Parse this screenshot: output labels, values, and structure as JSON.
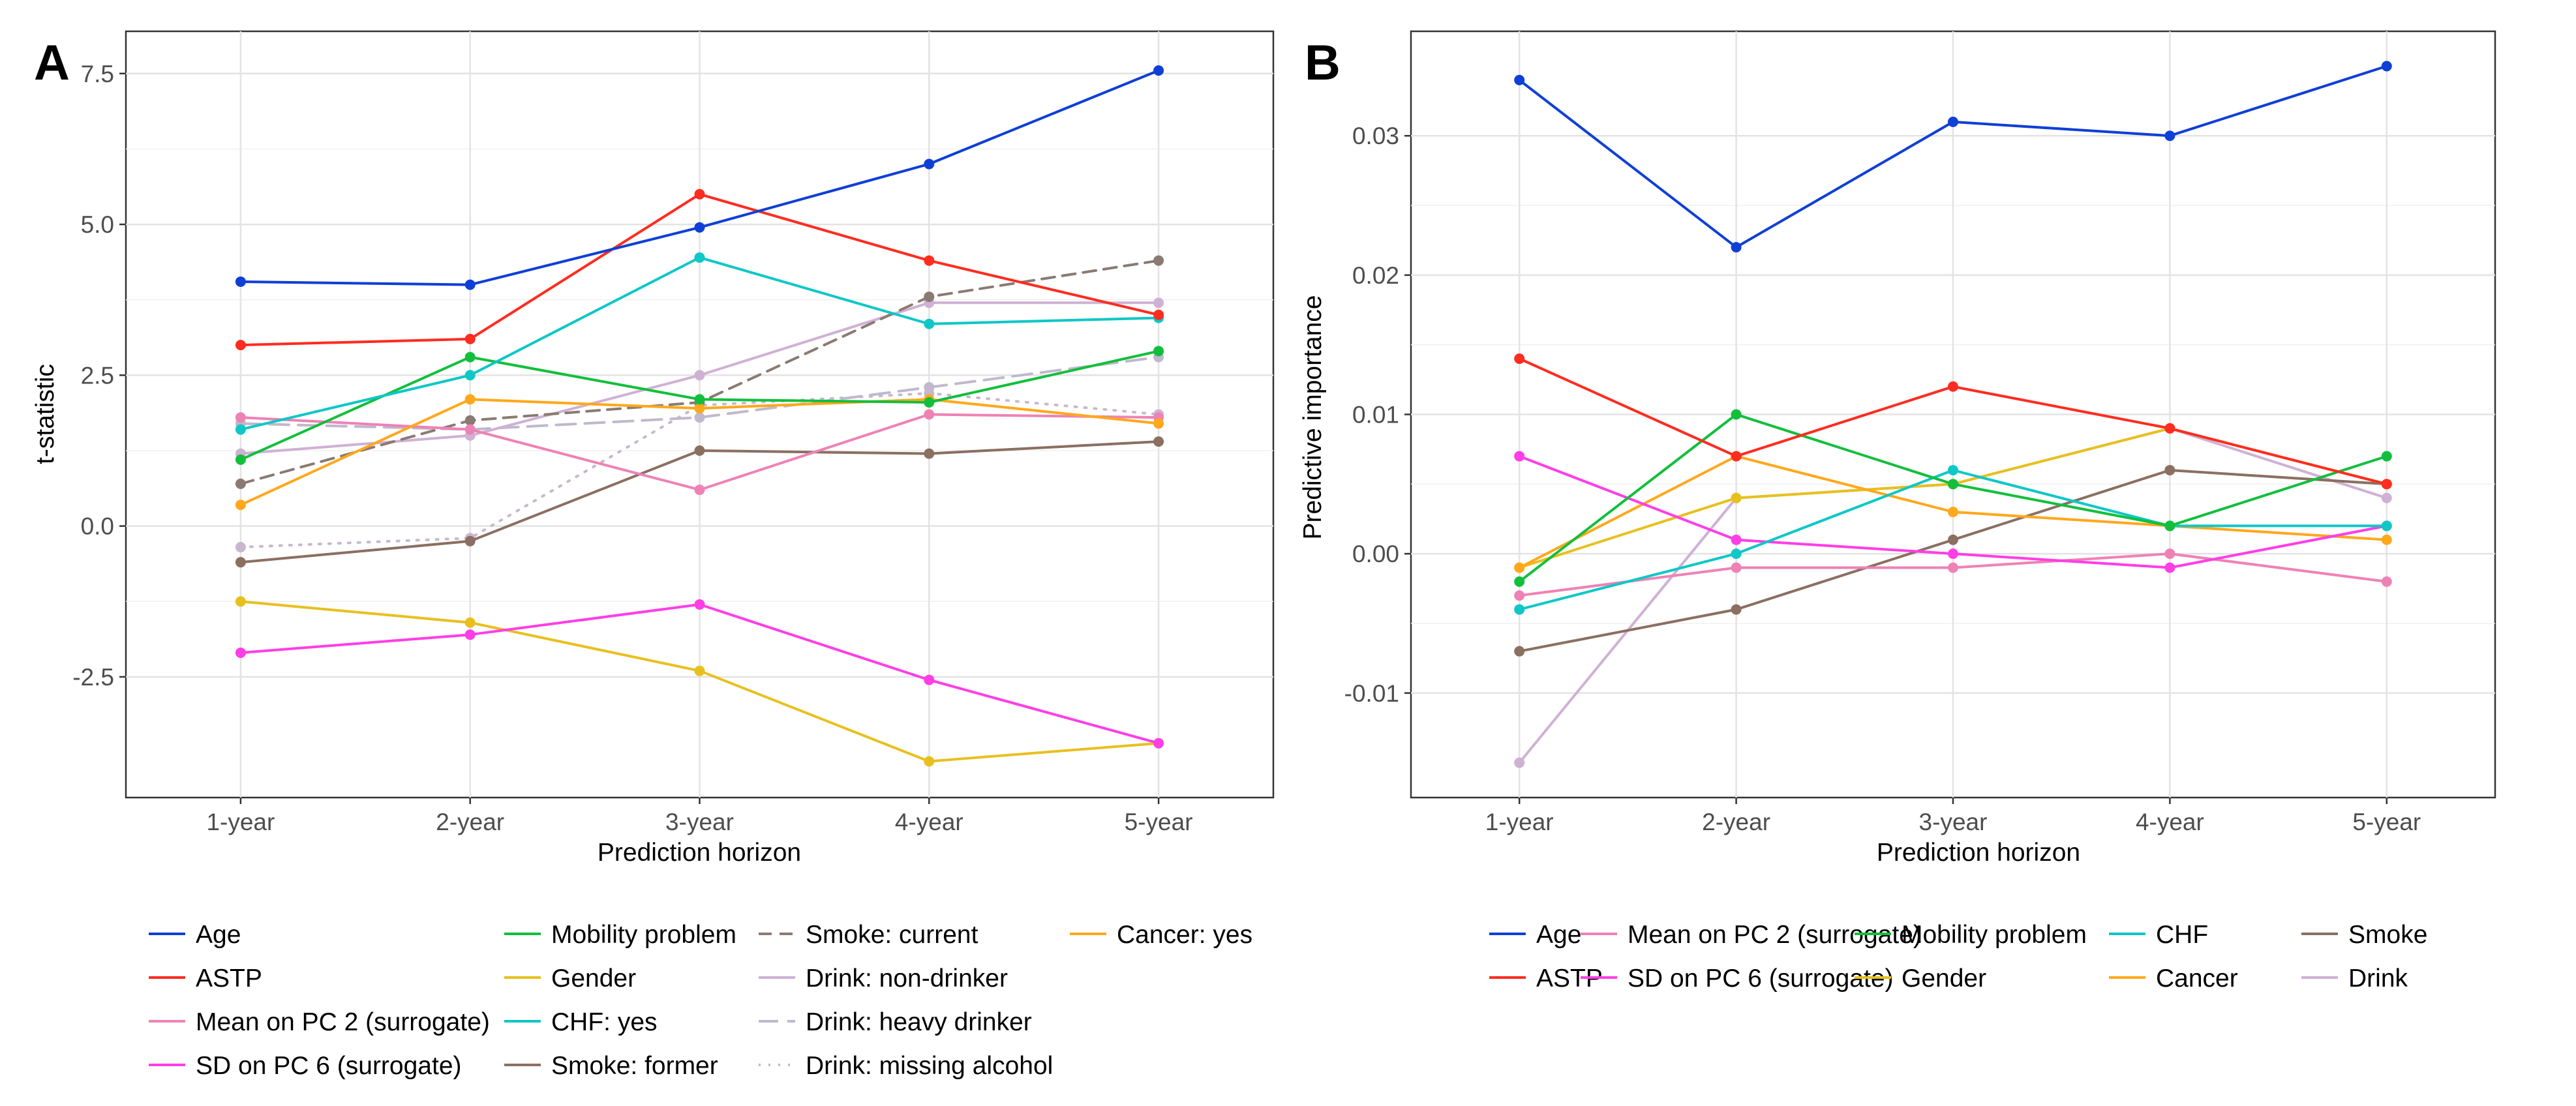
{
  "figure": {
    "panel_a_letter": "A",
    "panel_b_letter": "B"
  },
  "chart_data": [
    {
      "panel": "A",
      "type": "line",
      "title": "",
      "xlabel": "Prediction horizon",
      "ylabel": "t-statistic",
      "categories": [
        "1-year",
        "2-year",
        "3-year",
        "4-year",
        "5-year"
      ],
      "ylim": [
        -4.5,
        8.2
      ],
      "yticks": [
        -2.5,
        0.0,
        2.5,
        5.0,
        7.5
      ],
      "ytick_labels": [
        "-2.5",
        "0.0",
        "2.5",
        "5.0",
        "7.5"
      ],
      "grid": true,
      "legend_position": "bottom",
      "legend_columns": [
        [
          "Age",
          "ASTP",
          "Mean on PC 2 (surrogate)",
          "SD on PC 6 (surrogate)"
        ],
        [
          "Mobility problem",
          "Gender",
          "CHF: yes",
          "Smoke: former"
        ],
        [
          "Smoke: current",
          "Drink: non-drinker",
          "Drink: heavy drinker",
          "Drink: missing alcohol"
        ],
        [
          "Cancer: yes"
        ]
      ],
      "series": [
        {
          "name": "Drink: heavy drinker",
          "color": "#c0b8cc",
          "dash": "long",
          "values": [
            1.7,
            1.6,
            1.8,
            2.3,
            2.8
          ]
        },
        {
          "name": "Drink: missing alcohol",
          "color": "#c8b7cf",
          "dash": "dot",
          "values": [
            -0.35,
            -0.2,
            2.0,
            2.2,
            1.85
          ]
        },
        {
          "name": "Drink: non-drinker",
          "color": "#cfb1d4",
          "dash": "solid",
          "values": [
            1.2,
            1.5,
            2.5,
            3.7,
            3.7
          ]
        },
        {
          "name": "Smoke: current",
          "color": "#8a7a72",
          "dash": "dash",
          "values": [
            0.7,
            1.75,
            2.05,
            3.8,
            4.4
          ]
        },
        {
          "name": "Smoke: former",
          "color": "#8b6f61",
          "dash": "solid",
          "values": [
            -0.6,
            -0.25,
            1.25,
            1.2,
            1.4
          ]
        },
        {
          "name": "Mean on PC 2 (surrogate)",
          "color": "#ee82b5",
          "dash": "solid",
          "values": [
            1.8,
            1.6,
            0.6,
            1.85,
            1.8
          ]
        },
        {
          "name": "Cancer: yes",
          "color": "#ffa81c",
          "dash": "solid",
          "values": [
            0.35,
            2.1,
            1.95,
            2.1,
            1.7
          ]
        },
        {
          "name": "Mobility problem",
          "color": "#12bf3c",
          "dash": "solid",
          "values": [
            1.1,
            2.8,
            2.1,
            2.05,
            2.9
          ]
        },
        {
          "name": "CHF: yes",
          "color": "#0ec7c7",
          "dash": "solid",
          "values": [
            1.6,
            2.5,
            4.45,
            3.35,
            3.45
          ]
        },
        {
          "name": "Gender",
          "color": "#e8c01e",
          "dash": "solid",
          "values": [
            -1.25,
            -1.6,
            -2.4,
            -3.9,
            -3.6
          ]
        },
        {
          "name": "SD on PC 6 (surrogate)",
          "color": "#ff3ee6",
          "dash": "solid",
          "values": [
            -2.1,
            -1.8,
            -1.3,
            -2.55,
            -3.6
          ]
        },
        {
          "name": "ASTP",
          "color": "#ff2c20",
          "dash": "solid",
          "values": [
            3.0,
            3.1,
            5.5,
            4.4,
            3.5
          ]
        },
        {
          "name": "Age",
          "color": "#0f3fd6",
          "dash": "solid",
          "values": [
            4.05,
            4.0,
            4.95,
            6.0,
            7.55
          ]
        }
      ]
    },
    {
      "panel": "B",
      "type": "line",
      "title": "",
      "xlabel": "Prediction horizon",
      "ylabel": "Predictive importance",
      "categories": [
        "1-year",
        "2-year",
        "3-year",
        "4-year",
        "5-year"
      ],
      "ylim": [
        -0.0175,
        0.0375
      ],
      "yticks": [
        -0.01,
        0.0,
        0.01,
        0.02,
        0.03
      ],
      "ytick_labels": [
        "-0.01",
        "0.00",
        "0.01",
        "0.02",
        "0.03"
      ],
      "grid": true,
      "legend_position": "bottom",
      "legend_columns": [
        [
          "Age",
          "ASTP"
        ],
        [
          "Mean on PC 2 (surrogate)",
          "SD on PC 6 (surrogate)"
        ],
        [
          "Mobility problem",
          "Gender"
        ],
        [
          "CHF",
          "Cancer"
        ],
        [
          "Smoke",
          "Drink"
        ]
      ],
      "series": [
        {
          "name": "Drink",
          "color": "#cfb1d4",
          "dash": "solid",
          "values": [
            -0.015,
            0.004,
            0.005,
            0.009,
            0.004
          ]
        },
        {
          "name": "Smoke",
          "color": "#8b6f61",
          "dash": "solid",
          "values": [
            -0.007,
            -0.004,
            0.001,
            0.006,
            0.005
          ]
        },
        {
          "name": "Gender",
          "color": "#e8c01e",
          "dash": "solid",
          "values": [
            -0.001,
            0.004,
            0.005,
            0.009,
            0.005
          ]
        },
        {
          "name": "Cancer",
          "color": "#ffa81c",
          "dash": "solid",
          "values": [
            -0.001,
            0.007,
            0.003,
            0.002,
            0.001
          ]
        },
        {
          "name": "Mean on PC 2 (surrogate)",
          "color": "#ee82b5",
          "dash": "solid",
          "values": [
            -0.003,
            -0.001,
            -0.001,
            0.0,
            -0.002
          ]
        },
        {
          "name": "SD on PC 6 (surrogate)",
          "color": "#ff3ee6",
          "dash": "solid",
          "values": [
            0.007,
            0.001,
            0.0,
            -0.001,
            0.002
          ]
        },
        {
          "name": "CHF",
          "color": "#0ec7c7",
          "dash": "solid",
          "values": [
            -0.004,
            0.0,
            0.006,
            0.002,
            0.002
          ]
        },
        {
          "name": "Mobility problem",
          "color": "#12bf3c",
          "dash": "solid",
          "values": [
            -0.002,
            0.01,
            0.005,
            0.002,
            0.007
          ]
        },
        {
          "name": "ASTP",
          "color": "#ff2c20",
          "dash": "solid",
          "values": [
            0.014,
            0.007,
            0.012,
            0.009,
            0.005
          ]
        },
        {
          "name": "Age",
          "color": "#0f3fd6",
          "dash": "solid",
          "values": [
            0.034,
            0.022,
            0.031,
            0.03,
            0.035
          ]
        }
      ]
    }
  ]
}
